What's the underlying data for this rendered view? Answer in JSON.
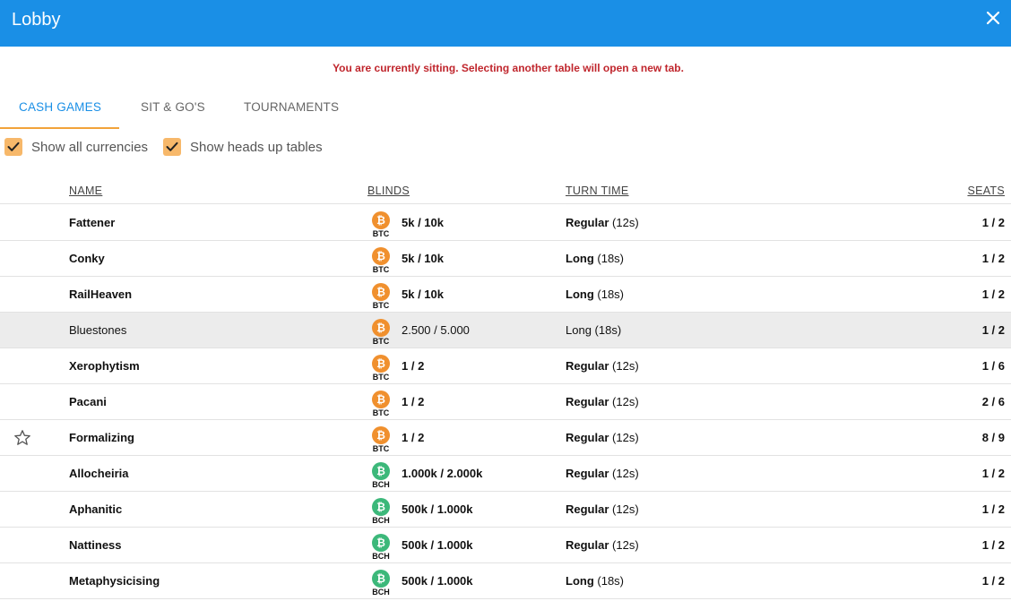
{
  "header": {
    "title": "Lobby",
    "close_icon": "close-icon"
  },
  "notice": "You are currently sitting. Selecting another table will open a new tab.",
  "tabs": [
    {
      "label": "CASH GAMES",
      "active": true
    },
    {
      "label": "SIT & GO'S",
      "active": false
    },
    {
      "label": "TOURNAMENTS",
      "active": false
    }
  ],
  "filters": [
    {
      "label": "Show all currencies",
      "checked": true
    },
    {
      "label": "Show heads up tables",
      "checked": true
    }
  ],
  "columns": {
    "name": "NAME",
    "blinds": "BLINDS",
    "turn_time": "TURN TIME",
    "seats": "SEATS"
  },
  "colors": {
    "header": "#1a8fe6",
    "accent": "#f2a33a",
    "btc": "#f0902e",
    "bch": "#3cb87a",
    "notice": "#c0262d"
  },
  "rows": [
    {
      "name": "Fattener",
      "currency": "BTC",
      "coin_symbol": "₿",
      "blinds": "5k / 10k",
      "turn": "Regular",
      "turn_secs": "(12s)",
      "seats": "1 / 2",
      "starred": false,
      "highlighted": false
    },
    {
      "name": "Conky",
      "currency": "BTC",
      "coin_symbol": "₿",
      "blinds": "5k / 10k",
      "turn": "Long",
      "turn_secs": "(18s)",
      "seats": "1 / 2",
      "starred": false,
      "highlighted": false
    },
    {
      "name": "RailHeaven",
      "currency": "BTC",
      "coin_symbol": "₿",
      "blinds": "5k / 10k",
      "turn": "Long",
      "turn_secs": "(18s)",
      "seats": "1 / 2",
      "starred": false,
      "highlighted": false
    },
    {
      "name": "Bluestones",
      "currency": "BTC",
      "coin_symbol": "₿",
      "blinds": "2.500 / 5.000",
      "turn": "Long",
      "turn_secs": "(18s)",
      "seats": "1 / 2",
      "starred": false,
      "highlighted": true
    },
    {
      "name": "Xerophytism",
      "currency": "BTC",
      "coin_symbol": "₿",
      "blinds": "1 / 2",
      "turn": "Regular",
      "turn_secs": "(12s)",
      "seats": "1 / 6",
      "starred": false,
      "highlighted": false
    },
    {
      "name": "Pacani",
      "currency": "BTC",
      "coin_symbol": "₿",
      "blinds": "1 / 2",
      "turn": "Regular",
      "turn_secs": "(12s)",
      "seats": "2 / 6",
      "starred": false,
      "highlighted": false
    },
    {
      "name": "Formalizing",
      "currency": "BTC",
      "coin_symbol": "₿",
      "blinds": "1 / 2",
      "turn": "Regular",
      "turn_secs": "(12s)",
      "seats": "8 / 9",
      "starred": true,
      "highlighted": false
    },
    {
      "name": "Allocheiria",
      "currency": "BCH",
      "coin_symbol": "₿",
      "blinds": "1.000k / 2.000k",
      "turn": "Regular",
      "turn_secs": "(12s)",
      "seats": "1 / 2",
      "starred": false,
      "highlighted": false
    },
    {
      "name": "Aphanitic",
      "currency": "BCH",
      "coin_symbol": "₿",
      "blinds": "500k / 1.000k",
      "turn": "Regular",
      "turn_secs": "(12s)",
      "seats": "1 / 2",
      "starred": false,
      "highlighted": false
    },
    {
      "name": "Nattiness",
      "currency": "BCH",
      "coin_symbol": "₿",
      "blinds": "500k / 1.000k",
      "turn": "Regular",
      "turn_secs": "(12s)",
      "seats": "1 / 2",
      "starred": false,
      "highlighted": false
    },
    {
      "name": "Metaphysicising",
      "currency": "BCH",
      "coin_symbol": "₿",
      "blinds": "500k / 1.000k",
      "turn": "Long",
      "turn_secs": "(18s)",
      "seats": "1 / 2",
      "starred": false,
      "highlighted": false
    }
  ]
}
